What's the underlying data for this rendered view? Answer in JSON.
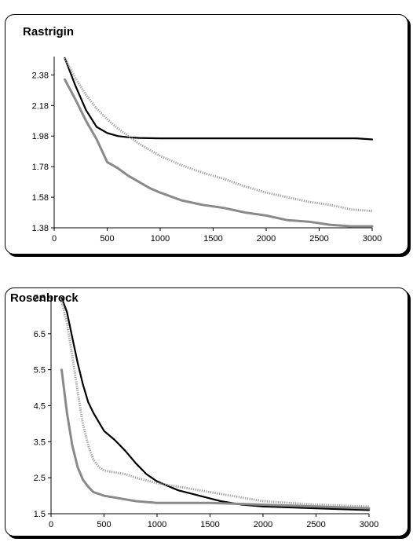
{
  "chart_data": [
    {
      "type": "line",
      "title": "Rastrigin",
      "xlim": [
        0,
        3000
      ],
      "ylim": [
        1.38,
        2.5
      ],
      "xticks": [
        0,
        500,
        1000,
        1500,
        2000,
        2500,
        3000
      ],
      "yticks": [
        1.38,
        1.58,
        1.78,
        1.98,
        2.18,
        2.38
      ],
      "xtick_labels": [
        "0",
        "500",
        "1000",
        "1500",
        "2000",
        "2500",
        "3000"
      ],
      "ytick_labels": [
        "1.38",
        "1.58",
        "1.78",
        "1.98",
        "2.18",
        "2.38"
      ],
      "grid": false,
      "series": [
        {
          "color": "#000000",
          "style": "solid",
          "width": 2.2,
          "x": [
            100,
            200,
            300,
            400,
            500,
            600,
            700,
            800,
            900,
            1000,
            1500,
            2000,
            2500,
            2850,
            3000
          ],
          "y": [
            2.49,
            2.31,
            2.15,
            2.04,
            2.0,
            1.98,
            1.972,
            1.968,
            1.966,
            1.965,
            1.965,
            1.965,
            1.965,
            1.965,
            1.958
          ]
        },
        {
          "color": "#9a9a9a",
          "style": "dotted",
          "width": 3,
          "x": [
            100,
            200,
            300,
            400,
            500,
            600,
            700,
            800,
            900,
            1000,
            1200,
            1400,
            1600,
            1800,
            2000,
            2200,
            2400,
            2600,
            2800,
            3000
          ],
          "y": [
            2.49,
            2.36,
            2.25,
            2.16,
            2.09,
            2.03,
            1.98,
            1.93,
            1.89,
            1.85,
            1.79,
            1.74,
            1.7,
            1.65,
            1.61,
            1.58,
            1.55,
            1.53,
            1.5,
            1.49
          ]
        },
        {
          "color": "#8a8a8a",
          "style": "solid",
          "width": 3,
          "x": [
            100,
            200,
            300,
            400,
            500,
            600,
            700,
            800,
            900,
            1000,
            1200,
            1400,
            1600,
            1800,
            2000,
            2200,
            2400,
            2600,
            2800,
            3000
          ],
          "y": [
            2.35,
            2.22,
            2.08,
            1.96,
            1.81,
            1.77,
            1.72,
            1.68,
            1.64,
            1.61,
            1.56,
            1.53,
            1.51,
            1.48,
            1.46,
            1.43,
            1.42,
            1.4,
            1.39,
            1.39
          ]
        }
      ]
    },
    {
      "type": "line",
      "title": "Rosenbrock",
      "xlim": [
        0,
        3000
      ],
      "ylim": [
        1.5,
        7.5
      ],
      "xticks": [
        0,
        500,
        1000,
        1500,
        2000,
        2500,
        3000
      ],
      "yticks": [
        1.5,
        2.5,
        3.5,
        4.5,
        5.5,
        6.5,
        7.5
      ],
      "xtick_labels": [
        "0",
        "500",
        "1000",
        "1500",
        "2000",
        "2500",
        "3000"
      ],
      "ytick_labels": [
        "1.5",
        "2.5",
        "3.5",
        "4.5",
        "5.5",
        "6.5",
        "7.5"
      ],
      "grid": false,
      "series": [
        {
          "color": "#000000",
          "style": "solid",
          "width": 2.2,
          "x": [
            100,
            150,
            200,
            250,
            300,
            350,
            400,
            500,
            600,
            700,
            800,
            900,
            1000,
            1200,
            1400,
            1600,
            1800,
            2000,
            2500,
            3000
          ],
          "y": [
            7.5,
            7.1,
            6.4,
            5.7,
            5.1,
            4.6,
            4.3,
            3.8,
            3.55,
            3.25,
            2.9,
            2.6,
            2.4,
            2.15,
            2.0,
            1.85,
            1.75,
            1.7,
            1.65,
            1.6
          ]
        },
        {
          "color": "#9a9a9a",
          "style": "dotted",
          "width": 3,
          "x": [
            100,
            150,
            200,
            250,
            300,
            350,
            400,
            450,
            500,
            600,
            700,
            800,
            1000,
            1200,
            1500,
            2000,
            2500,
            3000
          ],
          "y": [
            7.4,
            6.8,
            5.9,
            4.9,
            4.0,
            3.4,
            3.0,
            2.8,
            2.7,
            2.65,
            2.6,
            2.5,
            2.35,
            2.25,
            2.1,
            1.85,
            1.75,
            1.7
          ]
        },
        {
          "color": "#8a8a8a",
          "style": "solid",
          "width": 3,
          "x": [
            100,
            150,
            200,
            250,
            300,
            350,
            400,
            500,
            600,
            700,
            800,
            1000,
            1500,
            2000,
            2500,
            3000
          ],
          "y": [
            5.5,
            4.3,
            3.4,
            2.8,
            2.45,
            2.25,
            2.1,
            2.0,
            1.95,
            1.9,
            1.85,
            1.8,
            1.8,
            1.75,
            1.7,
            1.65
          ]
        }
      ]
    }
  ]
}
